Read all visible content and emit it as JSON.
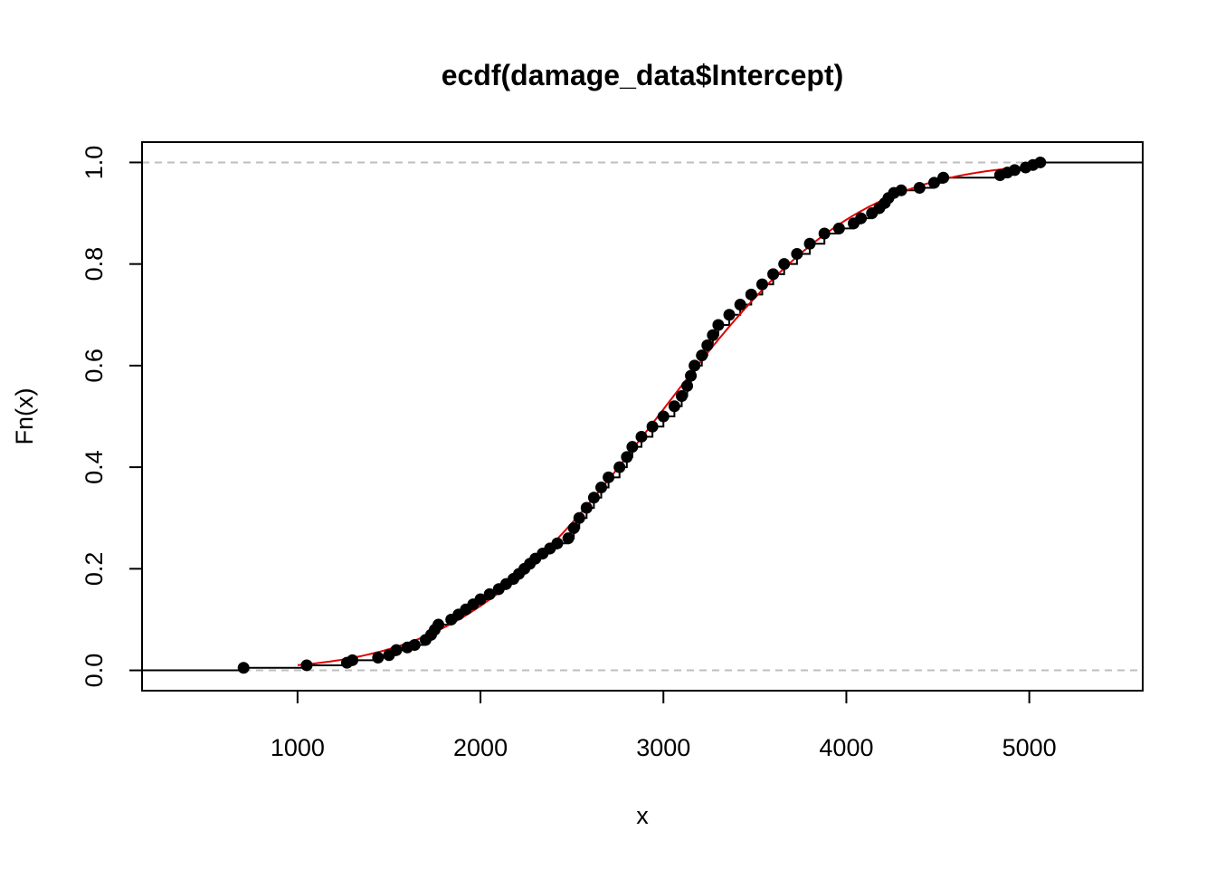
{
  "chart_data": {
    "type": "scatter",
    "title": "ecdf(damage_data$Intercept)",
    "xlabel": "x",
    "ylabel": "Fn(x)",
    "xlim": [
      150,
      5620
    ],
    "ylim": [
      -0.04,
      1.04
    ],
    "x_ticks": [
      1000,
      2000,
      3000,
      4000,
      5000
    ],
    "x_tick_labels": [
      "1000",
      "2000",
      "3000",
      "4000",
      "5000"
    ],
    "y_ticks": [
      0.0,
      0.2,
      0.4,
      0.6,
      0.8,
      1.0
    ],
    "y_tick_labels": [
      "0.0",
      "0.2",
      "0.4",
      "0.6",
      "0.8",
      "1.0"
    ],
    "grid": false,
    "legend": "none",
    "reference_lines": [
      0,
      1
    ],
    "colors": {
      "points": "#000000",
      "step": "#000000",
      "fit": "#e00000",
      "reference": "#bebebe"
    },
    "series": [
      {
        "type": "ecdf-step",
        "points": [
          [
            705,
            0.005
          ],
          [
            1050,
            0.01
          ],
          [
            1270,
            0.015
          ],
          [
            1300,
            0.02
          ],
          [
            1440,
            0.025
          ],
          [
            1500,
            0.03
          ],
          [
            1540,
            0.04
          ],
          [
            1600,
            0.045
          ],
          [
            1640,
            0.05
          ],
          [
            1700,
            0.06
          ],
          [
            1730,
            0.07
          ],
          [
            1750,
            0.08
          ],
          [
            1770,
            0.09
          ],
          [
            1840,
            0.1
          ],
          [
            1880,
            0.11
          ],
          [
            1920,
            0.12
          ],
          [
            1960,
            0.13
          ],
          [
            2000,
            0.14
          ],
          [
            2050,
            0.15
          ],
          [
            2100,
            0.16
          ],
          [
            2140,
            0.17
          ],
          [
            2180,
            0.18
          ],
          [
            2210,
            0.19
          ],
          [
            2240,
            0.2
          ],
          [
            2270,
            0.21
          ],
          [
            2300,
            0.22
          ],
          [
            2340,
            0.23
          ],
          [
            2380,
            0.24
          ],
          [
            2420,
            0.25
          ],
          [
            2480,
            0.26
          ],
          [
            2510,
            0.28
          ],
          [
            2540,
            0.3
          ],
          [
            2580,
            0.32
          ],
          [
            2620,
            0.34
          ],
          [
            2660,
            0.36
          ],
          [
            2700,
            0.38
          ],
          [
            2760,
            0.4
          ],
          [
            2800,
            0.42
          ],
          [
            2830,
            0.44
          ],
          [
            2880,
            0.46
          ],
          [
            2940,
            0.48
          ],
          [
            3000,
            0.5
          ],
          [
            3060,
            0.52
          ],
          [
            3100,
            0.54
          ],
          [
            3130,
            0.56
          ],
          [
            3150,
            0.58
          ],
          [
            3170,
            0.6
          ],
          [
            3210,
            0.62
          ],
          [
            3240,
            0.64
          ],
          [
            3270,
            0.66
          ],
          [
            3300,
            0.68
          ],
          [
            3360,
            0.7
          ],
          [
            3420,
            0.72
          ],
          [
            3480,
            0.74
          ],
          [
            3540,
            0.76
          ],
          [
            3600,
            0.78
          ],
          [
            3660,
            0.8
          ],
          [
            3730,
            0.82
          ],
          [
            3800,
            0.84
          ],
          [
            3880,
            0.86
          ],
          [
            3960,
            0.87
          ],
          [
            4040,
            0.88
          ],
          [
            4080,
            0.89
          ],
          [
            4140,
            0.9
          ],
          [
            4180,
            0.91
          ],
          [
            4210,
            0.92
          ],
          [
            4230,
            0.93
          ],
          [
            4260,
            0.94
          ],
          [
            4300,
            0.945
          ],
          [
            4400,
            0.95
          ],
          [
            4480,
            0.96
          ],
          [
            4530,
            0.97
          ],
          [
            4840,
            0.975
          ],
          [
            4880,
            0.98
          ],
          [
            4920,
            0.985
          ],
          [
            4980,
            0.99
          ],
          [
            5020,
            0.995
          ],
          [
            5060,
            1.0
          ]
        ]
      },
      {
        "type": "fitted-cdf-line",
        "mean": 2970,
        "sd": 850,
        "x_range": [
          1000,
          5060
        ]
      }
    ]
  }
}
